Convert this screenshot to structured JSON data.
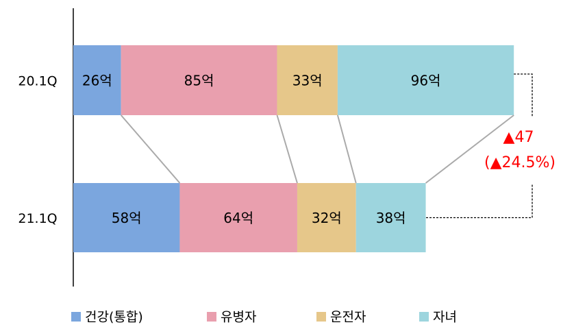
{
  "chart_data": {
    "type": "stacked_bar_horizontal",
    "categories": [
      "20.1Q",
      "21.1Q"
    ],
    "series": [
      {
        "name": "건강(통합)",
        "color": "#7ba6de",
        "values": [
          26,
          58
        ],
        "value_labels": [
          "26억",
          "58억"
        ]
      },
      {
        "name": "유병자",
        "color": "#e99fae",
        "values": [
          85,
          64
        ],
        "value_labels": [
          "85억",
          "64억"
        ]
      },
      {
        "name": "운전자",
        "color": "#e6c78a",
        "values": [
          33,
          32
        ],
        "value_labels": [
          "33억",
          "32억"
        ]
      },
      {
        "name": "자녀",
        "color": "#9dd5de",
        "values": [
          96,
          38
        ],
        "value_labels": [
          "96억",
          "38억"
        ]
      }
    ],
    "annotations": [
      "▲47",
      "(▲24.5%)"
    ],
    "annotation_color": "#ff0000"
  }
}
